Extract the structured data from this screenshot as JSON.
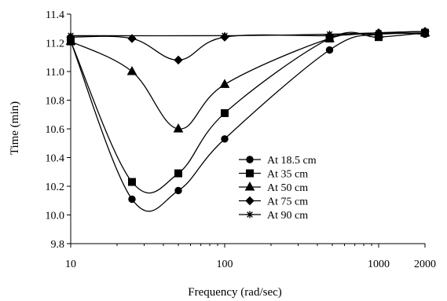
{
  "chart_data": {
    "type": "line",
    "title": "",
    "xlabel": "Frequency (rad/sec)",
    "ylabel": "Time (min)",
    "x_scale": "log",
    "xlim": [
      10,
      2000
    ],
    "ylim": [
      9.8,
      11.4
    ],
    "x_ticks": [
      10,
      100,
      1000,
      2000
    ],
    "x_tick_labels": [
      "10",
      "100",
      "1000",
      "2000"
    ],
    "y_ticks": [
      9.8,
      10.0,
      10.2,
      10.4,
      10.6,
      10.8,
      11.0,
      11.2,
      11.4
    ],
    "y_tick_labels": [
      "9.8",
      "10.0",
      "10.2",
      "10.4",
      "10.6",
      "10.8",
      "11.0",
      "11.2",
      "11.4"
    ],
    "grid": false,
    "legend_position": "bottom-right",
    "series": [
      {
        "name": "At 18.5 cm",
        "marker": "circle",
        "color": "#000000",
        "points": [
          [
            10,
            11.21
          ],
          [
            25,
            10.11
          ],
          [
            50,
            10.17
          ],
          [
            100,
            10.53
          ],
          [
            480,
            11.15
          ],
          [
            1000,
            11.26
          ],
          [
            2000,
            11.26
          ]
        ]
      },
      {
        "name": "At 35 cm",
        "marker": "square",
        "color": "#000000",
        "points": [
          [
            10,
            11.21
          ],
          [
            25,
            10.23
          ],
          [
            50,
            10.29
          ],
          [
            100,
            10.71
          ],
          [
            480,
            11.23
          ],
          [
            1000,
            11.24
          ],
          [
            2000,
            11.27
          ]
        ]
      },
      {
        "name": "At 50 cm",
        "marker": "triangle",
        "color": "#000000",
        "points": [
          [
            10,
            11.21
          ],
          [
            25,
            11.0
          ],
          [
            50,
            10.6
          ],
          [
            100,
            10.91
          ],
          [
            480,
            11.23
          ],
          [
            1000,
            11.26
          ],
          [
            2000,
            11.27
          ]
        ]
      },
      {
        "name": "At 75 cm",
        "marker": "diamond",
        "color": "#000000",
        "points": [
          [
            10,
            11.24
          ],
          [
            25,
            11.23
          ],
          [
            50,
            11.08
          ],
          [
            100,
            11.24
          ],
          [
            480,
            11.25
          ],
          [
            1000,
            11.27
          ],
          [
            2000,
            11.28
          ]
        ]
      },
      {
        "name": "At 90 cm",
        "marker": "star",
        "color": "#000000",
        "points": [
          [
            10,
            11.25
          ],
          [
            100,
            11.25
          ],
          [
            480,
            11.26
          ],
          [
            1000,
            11.27
          ],
          [
            2000,
            11.28
          ]
        ]
      }
    ]
  }
}
